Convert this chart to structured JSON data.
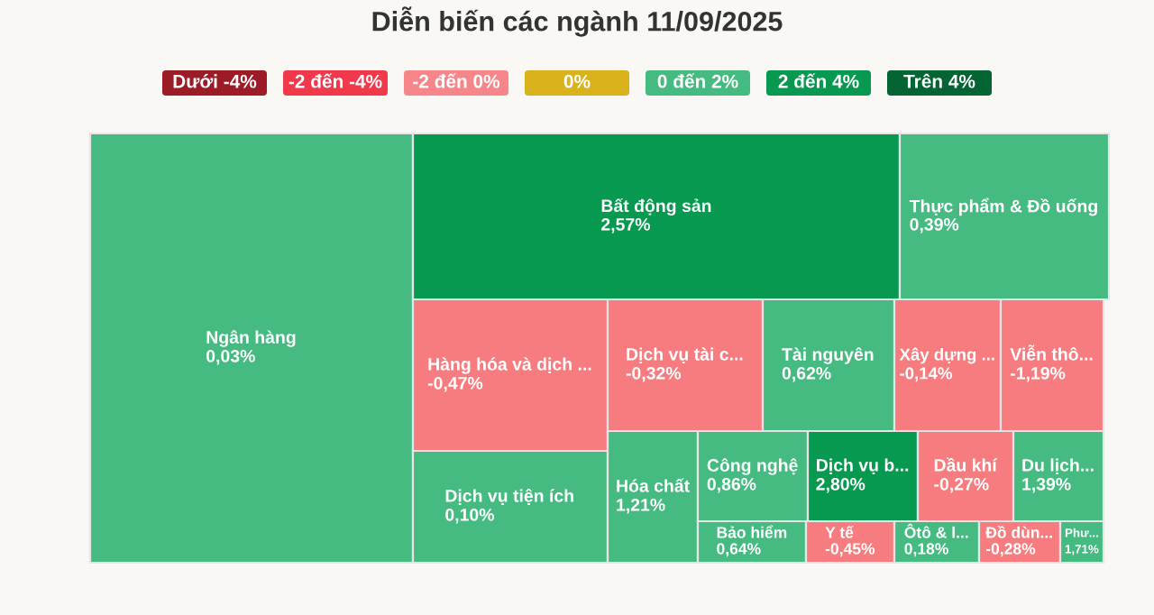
{
  "chart_data": {
    "type": "other",
    "title": "Diễn biến các ngành 11/09/2025",
    "categories": [
      "Ngân hàng",
      "Bất động sản",
      "Thực phẩm & Đồ uống",
      "Hàng hóa và dịch ...",
      "Dịch vụ tài c...",
      "Tài nguyên",
      "Xây dựng ...",
      "Viễn thô...",
      "Dịch vụ tiện ích",
      "Hóa chất",
      "Công nghệ",
      "Dịch vụ b...",
      "Dầu khí",
      "Du lịch...",
      "Bảo hiểm",
      "Y tế",
      "Ôtô & l...",
      "Đồ dùn...",
      "Phư..."
    ],
    "values": [
      0.03,
      2.57,
      0.39,
      -0.47,
      -0.32,
      0.62,
      -0.14,
      -1.19,
      0.1,
      1.21,
      0.86,
      2.8,
      -0.27,
      1.39,
      0.64,
      -0.45,
      0.18,
      -0.28,
      1.71
    ],
    "value_labels": [
      "0,03%",
      "2,57%",
      "0,39%",
      "-0,47%",
      "-0,32%",
      "0,62%",
      "-0,14%",
      "-1,19%",
      "0,10%",
      "1,21%",
      "0,86%",
      "2,80%",
      "-0,27%",
      "1,39%",
      "0,64%",
      "-0,45%",
      "0,18%",
      "-0,28%",
      "1,71%"
    ],
    "colors": [
      "#45bb81",
      "#07994f",
      "#45bb81",
      "#f77c7f",
      "#f77c7f",
      "#45bb81",
      "#f77c7f",
      "#f77c7f",
      "#45bb81",
      "#45bb81",
      "#45bb81",
      "#07994f",
      "#f77c7f",
      "#45bb81",
      "#45bb81",
      "#f77c7f",
      "#45bb81",
      "#f77c7f",
      "#45bb81"
    ],
    "annotations": [
      "Dưới -4%",
      "-2 đến -4%",
      "-2 đến 0%",
      "0%",
      "0 đến 2%",
      "2 đến 4%",
      "Trên 4%"
    ]
  }
}
